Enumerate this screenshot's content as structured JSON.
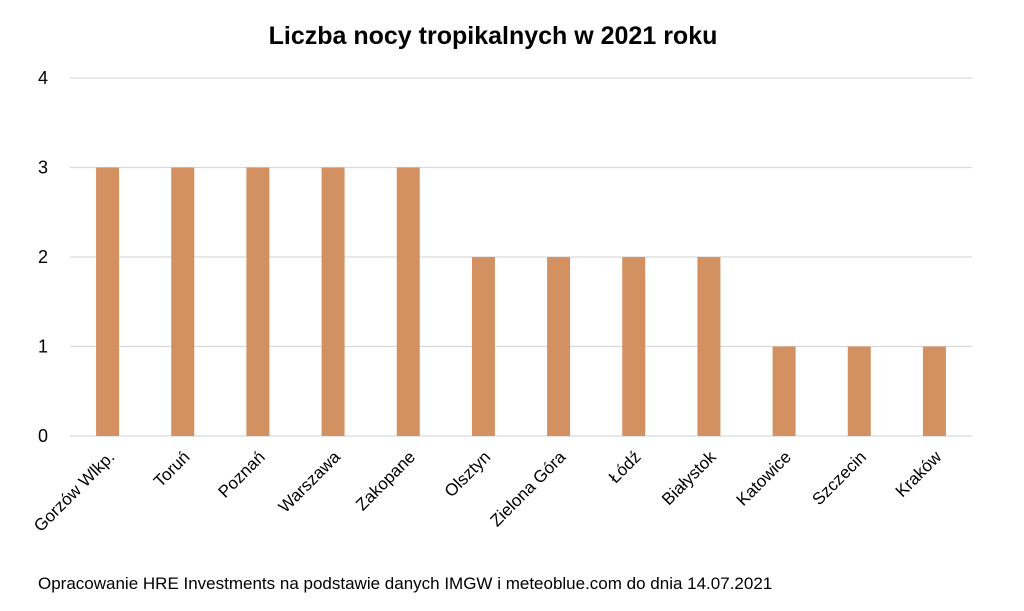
{
  "chart_data": {
    "type": "bar",
    "title": "Liczba nocy tropikalnych w 2021 roku",
    "categories": [
      "Gorzów Wlkp.",
      "Toruń",
      "Poznań",
      "Warszawa",
      "Zakopane",
      "Olsztyn",
      "Zielona Góra",
      "Łódź",
      "Białystok",
      "Katowice",
      "Szczecin",
      "Kraków"
    ],
    "values": [
      3,
      3,
      3,
      3,
      3,
      2,
      2,
      2,
      2,
      1,
      1,
      1
    ],
    "yticks": [
      "0",
      "1",
      "2",
      "3",
      "4"
    ],
    "ylim": [
      0,
      4
    ],
    "xlabel": "",
    "ylabel": "",
    "grid": true,
    "bar_color": "#D39161",
    "grid_color": "#D9D9D9"
  },
  "source_note": "Opracowanie HRE Investments na podstawie danych IMGW i meteoblue.com do dnia 14.07.2021"
}
